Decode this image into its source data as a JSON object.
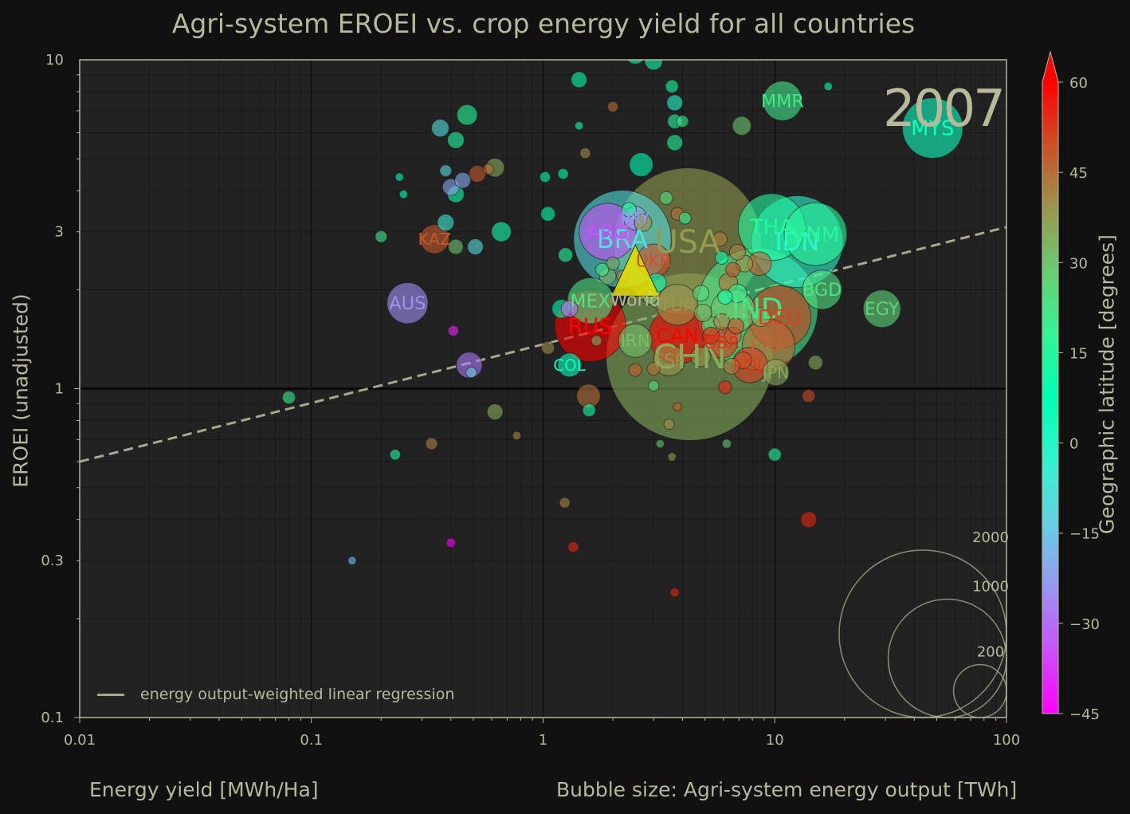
{
  "title": "Agri-system EROEI vs. crop energy yield for all countries",
  "year": "2007",
  "colors": {
    "background": "#111111",
    "axes_bg": "#222222",
    "text": "#b8b89a",
    "grid": "#111111",
    "regression": "#a8a88c"
  },
  "chart_data": {
    "type": "scatter",
    "xlabel": "Energy yield [MWh/Ha]",
    "ylabel": "EROEI (unadjusted)",
    "size_label": "Bubble size: Agri-system energy output [TWh]",
    "colorbar_label": "Geographic latitude [degrees]",
    "x_scale": "log",
    "y_scale": "log",
    "xlim": [
      0.01,
      100
    ],
    "ylim": [
      0.1,
      10
    ],
    "x_ticks": [
      "0.01",
      "0.1",
      "1",
      "10",
      "100"
    ],
    "y_ticks": [
      "0.1",
      "0.3",
      "1",
      "3",
      "10"
    ],
    "colorbar": {
      "min": -45,
      "max": 60,
      "ticks": [
        "60",
        "45",
        "30",
        "15",
        "0",
        "−15",
        "−30",
        "−45"
      ],
      "colormap": "rainbow"
    },
    "legend": {
      "entry": "energy output-weighted linear regression",
      "placement": "lower-left"
    },
    "regression": {
      "points": [
        [
          0.01,
          0.6
        ],
        [
          100,
          3.1
        ]
      ]
    },
    "size_legend": [
      2000,
      1000,
      200
    ],
    "points": [
      {
        "label": "CHN",
        "x": 4.3,
        "y": 1.25,
        "size": 2000,
        "lat": 35
      },
      {
        "label": "USA",
        "x": 4.2,
        "y": 2.8,
        "size": 1550,
        "lat": 38
      },
      {
        "label": "IND",
        "x": 8.4,
        "y": 1.75,
        "size": 1050,
        "lat": 22
      },
      {
        "label": "BRA",
        "x": 2.2,
        "y": 2.85,
        "size": 680,
        "lat": -10
      },
      {
        "label": "IDN",
        "x": 12.5,
        "y": 2.8,
        "size": 600,
        "lat": -2
      },
      {
        "label": "THA",
        "x": 9.7,
        "y": 3.1,
        "size": 320,
        "lat": 15
      },
      {
        "label": "VNM",
        "x": 15,
        "y": 2.95,
        "size": 280,
        "lat": 16
      },
      {
        "label": "RUS",
        "x": 1.6,
        "y": 1.55,
        "size": 360,
        "lat": 60
      },
      {
        "label": "DEU",
        "x": 10.5,
        "y": 1.65,
        "size": 280,
        "lat": 51
      },
      {
        "label": "FRA",
        "x": 9.4,
        "y": 1.35,
        "size": 200,
        "lat": 46
      },
      {
        "label": "CAN",
        "x": 3.8,
        "y": 1.45,
        "size": 230,
        "lat": 60
      },
      {
        "label": "ARG",
        "x": 1.9,
        "y": 3.0,
        "size": 230,
        "lat": -34
      },
      {
        "label": "MEX",
        "x": 1.6,
        "y": 1.85,
        "size": 150,
        "lat": 23
      },
      {
        "label": "TUR",
        "x": 3.8,
        "y": 1.8,
        "size": 120,
        "lat": 39
      },
      {
        "label": "PAK",
        "x": 6.6,
        "y": 1.72,
        "size": 140,
        "lat": 30
      },
      {
        "label": "UKR",
        "x": 3.0,
        "y": 2.45,
        "size": 80,
        "lat": 49
      },
      {
        "label": "AUS",
        "x": 0.26,
        "y": 1.82,
        "size": 120,
        "lat": -25
      },
      {
        "label": "KAZ",
        "x": 0.34,
        "y": 2.85,
        "size": 60,
        "lat": 48
      },
      {
        "label": "EGY",
        "x": 29,
        "y": 1.75,
        "size": 100,
        "lat": 27
      },
      {
        "label": "BGD",
        "x": 16,
        "y": 2.0,
        "size": 110,
        "lat": 24
      },
      {
        "label": "MYS",
        "x": 48,
        "y": 6.2,
        "size": 260,
        "lat": 4
      },
      {
        "label": "MMR",
        "x": 10.8,
        "y": 7.5,
        "size": 110,
        "lat": 21
      },
      {
        "label": "POL",
        "x": 7.8,
        "y": 1.18,
        "size": 90,
        "lat": 52
      },
      {
        "label": "GBR",
        "x": 5.9,
        "y": 1.38,
        "size": 70,
        "lat": 54
      },
      {
        "label": "ESP",
        "x": 3.5,
        "y": 1.22,
        "size": 70,
        "lat": 40
      },
      {
        "label": "IRN",
        "x": 2.5,
        "y": 1.4,
        "size": 80,
        "lat": 32
      },
      {
        "label": "JPN",
        "x": 10.1,
        "y": 1.12,
        "size": 50,
        "lat": 36
      },
      {
        "label": "COL",
        "x": 1.3,
        "y": 1.18,
        "size": 40,
        "lat": 4
      },
      {
        "label": "PRY",
        "x": 2.5,
        "y": 3.3,
        "size": 40,
        "lat": -23
      },
      {
        "label": "World",
        "x": 2.5,
        "y": 2.0,
        "size": 0,
        "lat": 20
      },
      {
        "label": "",
        "x": 0.47,
        "y": 6.8,
        "size": 30,
        "lat": 15
      },
      {
        "label": "",
        "x": 0.36,
        "y": 6.2,
        "size": 22,
        "lat": -10
      },
      {
        "label": "",
        "x": 0.42,
        "y": 5.7,
        "size": 20,
        "lat": 14
      },
      {
        "label": "",
        "x": 0.45,
        "y": 4.3,
        "size": 18,
        "lat": -20
      },
      {
        "label": "",
        "x": 0.52,
        "y": 4.5,
        "size": 20,
        "lat": 48
      },
      {
        "label": "",
        "x": 0.42,
        "y": 3.9,
        "size": 20,
        "lat": 12
      },
      {
        "label": "",
        "x": 0.38,
        "y": 4.6,
        "size": 10,
        "lat": -12
      },
      {
        "label": "",
        "x": 0.38,
        "y": 3.2,
        "size": 20,
        "lat": -5
      },
      {
        "label": "",
        "x": 0.42,
        "y": 2.7,
        "size": 16,
        "lat": 30
      },
      {
        "label": "",
        "x": 0.51,
        "y": 2.7,
        "size": 18,
        "lat": -10
      },
      {
        "label": "",
        "x": 0.2,
        "y": 2.9,
        "size": 10,
        "lat": 20
      },
      {
        "label": "",
        "x": 0.62,
        "y": 4.7,
        "size": 25,
        "lat": 35
      },
      {
        "label": "",
        "x": 0.66,
        "y": 3.0,
        "size": 28,
        "lat": 12
      },
      {
        "label": "",
        "x": 0.48,
        "y": 1.18,
        "size": 48,
        "lat": -28
      },
      {
        "label": "",
        "x": 0.49,
        "y": 1.12,
        "size": 8,
        "lat": -15
      },
      {
        "label": "",
        "x": 0.41,
        "y": 1.5,
        "size": 8,
        "lat": -40
      },
      {
        "label": "",
        "x": 0.08,
        "y": 0.94,
        "size": 12,
        "lat": 20
      },
      {
        "label": "",
        "x": 0.62,
        "y": 0.85,
        "size": 18,
        "lat": 35
      },
      {
        "label": "",
        "x": 0.33,
        "y": 0.68,
        "size": 10,
        "lat": 42
      },
      {
        "label": "",
        "x": 1.02,
        "y": 4.4,
        "size": 8,
        "lat": 10
      },
      {
        "label": "",
        "x": 1.05,
        "y": 3.4,
        "size": 15,
        "lat": 10
      },
      {
        "label": "",
        "x": 1.22,
        "y": 4.5,
        "size": 8,
        "lat": 10
      },
      {
        "label": "",
        "x": 1.25,
        "y": 2.55,
        "size": 15,
        "lat": 15
      },
      {
        "label": "",
        "x": 1.9,
        "y": 2.2,
        "size": 20,
        "lat": 35
      },
      {
        "label": "",
        "x": 1.2,
        "y": 1.75,
        "size": 25,
        "lat": 8
      },
      {
        "label": "",
        "x": 1.3,
        "y": 1.75,
        "size": 20,
        "lat": -30
      },
      {
        "label": "",
        "x": 1.05,
        "y": 1.33,
        "size": 12,
        "lat": 40
      },
      {
        "label": "",
        "x": 1.57,
        "y": 0.95,
        "size": 40,
        "lat": 45
      },
      {
        "label": "",
        "x": 1.58,
        "y": 0.86,
        "size": 12,
        "lat": 12
      },
      {
        "label": "",
        "x": 1.43,
        "y": 8.7,
        "size": 18,
        "lat": 10
      },
      {
        "label": "",
        "x": 1.52,
        "y": 5.2,
        "size": 8,
        "lat": 40
      },
      {
        "label": "",
        "x": 1.43,
        "y": 6.3,
        "size": 5,
        "lat": 12
      },
      {
        "label": "",
        "x": 2.65,
        "y": 4.8,
        "size": 40,
        "lat": 8
      },
      {
        "label": "",
        "x": 2.0,
        "y": 7.2,
        "size": 8,
        "lat": 45
      },
      {
        "label": "",
        "x": 2.5,
        "y": 10.4,
        "size": 28,
        "lat": 10
      },
      {
        "label": "",
        "x": 3.0,
        "y": 9.9,
        "size": 22,
        "lat": 12
      },
      {
        "label": "",
        "x": 3.6,
        "y": 8.3,
        "size": 12,
        "lat": 12
      },
      {
        "label": "",
        "x": 3.7,
        "y": 7.4,
        "size": 18,
        "lat": 0
      },
      {
        "label": "",
        "x": 3.7,
        "y": 6.5,
        "size": 15,
        "lat": 15
      },
      {
        "label": "",
        "x": 4.0,
        "y": 6.5,
        "size": 10,
        "lat": 20
      },
      {
        "label": "",
        "x": 3.7,
        "y": 5.6,
        "size": 18,
        "lat": 15
      },
      {
        "label": "",
        "x": 7.2,
        "y": 6.3,
        "size": 25,
        "lat": 30
      },
      {
        "label": "",
        "x": 3.4,
        "y": 3.8,
        "size": 12,
        "lat": 25
      },
      {
        "label": "",
        "x": 3.8,
        "y": 3.4,
        "size": 12,
        "lat": 45
      },
      {
        "label": "",
        "x": 4.1,
        "y": 3.3,
        "size": 10,
        "lat": 18
      },
      {
        "label": "",
        "x": 2.35,
        "y": 3.5,
        "size": 15,
        "lat": 15
      },
      {
        "label": "",
        "x": 2.7,
        "y": 3.2,
        "size": 22,
        "lat": 40
      },
      {
        "label": "",
        "x": 3.1,
        "y": 2.1,
        "size": 25,
        "lat": 5
      },
      {
        "label": "",
        "x": 8.6,
        "y": 2.4,
        "size": 40,
        "lat": 48
      },
      {
        "label": "",
        "x": 5.8,
        "y": 2.85,
        "size": 15,
        "lat": 43
      },
      {
        "label": "",
        "x": 6.9,
        "y": 2.6,
        "size": 18,
        "lat": 42
      },
      {
        "label": "",
        "x": 7.4,
        "y": 2.4,
        "size": 20,
        "lat": 40
      },
      {
        "label": "",
        "x": 6.6,
        "y": 2.3,
        "size": 15,
        "lat": 50
      },
      {
        "label": "",
        "x": 5.9,
        "y": 2.5,
        "size": 12,
        "lat": 10
      },
      {
        "label": "",
        "x": 6.3,
        "y": 2.1,
        "size": 25,
        "lat": 45
      },
      {
        "label": "",
        "x": 6.9,
        "y": 1.95,
        "size": 25,
        "lat": 20
      },
      {
        "label": "",
        "x": 6.1,
        "y": 1.9,
        "size": 15,
        "lat": 12
      },
      {
        "label": "",
        "x": 4.8,
        "y": 1.95,
        "size": 18,
        "lat": 25
      },
      {
        "label": "",
        "x": 4.9,
        "y": 1.7,
        "size": 22,
        "lat": 35
      },
      {
        "label": "",
        "x": 5.3,
        "y": 1.55,
        "size": 25,
        "lat": 32
      },
      {
        "label": "",
        "x": 5.9,
        "y": 1.6,
        "size": 18,
        "lat": 42
      },
      {
        "label": "",
        "x": 6.8,
        "y": 1.55,
        "size": 18,
        "lat": 50
      },
      {
        "label": "",
        "x": 8.7,
        "y": 1.65,
        "size": 25,
        "lat": 28
      },
      {
        "label": "",
        "x": 6.6,
        "y": 1.45,
        "size": 20,
        "lat": 48
      },
      {
        "label": "",
        "x": 5.3,
        "y": 1.45,
        "size": 20,
        "lat": 56
      },
      {
        "label": "",
        "x": 4.8,
        "y": 1.25,
        "size": 28,
        "lat": 40
      },
      {
        "label": "",
        "x": 6.5,
        "y": 1.17,
        "size": 18,
        "lat": 42
      },
      {
        "label": "",
        "x": 6.1,
        "y": 1.01,
        "size": 12,
        "lat": 56
      },
      {
        "label": "",
        "x": 7.3,
        "y": 1.22,
        "size": 20,
        "lat": 50
      },
      {
        "label": "",
        "x": 15,
        "y": 1.2,
        "size": 15,
        "lat": 35
      },
      {
        "label": "",
        "x": 14,
        "y": 0.95,
        "size": 12,
        "lat": 50
      },
      {
        "label": "",
        "x": 14,
        "y": 0.4,
        "size": 18,
        "lat": 55
      },
      {
        "label": "",
        "x": 3.0,
        "y": 1.15,
        "size": 12,
        "lat": 45
      },
      {
        "label": "",
        "x": 2.5,
        "y": 1.14,
        "size": 12,
        "lat": 48
      },
      {
        "label": "",
        "x": 3.0,
        "y": 1.02,
        "size": 8,
        "lat": 25
      },
      {
        "label": "",
        "x": 2.9,
        "y": 1.9,
        "size": 15,
        "lat": 32
      },
      {
        "label": "",
        "x": 2.0,
        "y": 2.4,
        "size": 12,
        "lat": 35
      },
      {
        "label": "",
        "x": 2.2,
        "y": 2.2,
        "size": 10,
        "lat": 42
      },
      {
        "label": "",
        "x": 1.8,
        "y": 2.3,
        "size": 12,
        "lat": 20
      },
      {
        "label": "",
        "x": 1.7,
        "y": 1.4,
        "size": 8,
        "lat": 35
      },
      {
        "label": "",
        "x": 3.5,
        "y": 0.78,
        "size": 8,
        "lat": 40
      },
      {
        "label": "",
        "x": 3.2,
        "y": 0.68,
        "size": 5,
        "lat": 30
      },
      {
        "label": "",
        "x": 3.8,
        "y": 0.88,
        "size": 5,
        "lat": 48
      },
      {
        "label": "",
        "x": 3.6,
        "y": 0.62,
        "size": 5,
        "lat": 38
      },
      {
        "label": "",
        "x": 0.77,
        "y": 0.72,
        "size": 5,
        "lat": 42
      },
      {
        "label": "",
        "x": 1.24,
        "y": 0.45,
        "size": 8,
        "lat": 42
      },
      {
        "label": "",
        "x": 1.35,
        "y": 0.33,
        "size": 8,
        "lat": 55
      },
      {
        "label": "",
        "x": 3.7,
        "y": 0.24,
        "size": 6,
        "lat": 55
      },
      {
        "label": "",
        "x": 0.4,
        "y": 0.34,
        "size": 6,
        "lat": -45
      },
      {
        "label": "",
        "x": 0.23,
        "y": 0.63,
        "size": 8,
        "lat": 15
      },
      {
        "label": "",
        "x": 0.15,
        "y": 0.3,
        "size": 5,
        "lat": -15
      },
      {
        "label": "",
        "x": 10,
        "y": 0.63,
        "size": 12,
        "lat": 15
      },
      {
        "label": "",
        "x": 6.2,
        "y": 0.68,
        "size": 6,
        "lat": 30
      },
      {
        "label": "",
        "x": 17,
        "y": 8.3,
        "size": 5,
        "lat": 5
      },
      {
        "label": "",
        "x": 0.4,
        "y": 4.1,
        "size": 20,
        "lat": -22
      },
      {
        "label": "",
        "x": 0.24,
        "y": 4.4,
        "size": 5,
        "lat": 5
      },
      {
        "label": "",
        "x": 0.25,
        "y": 3.9,
        "size": 5,
        "lat": 5
      },
      {
        "label": "",
        "x": 0.58,
        "y": 4.65,
        "size": 8,
        "lat": 45
      }
    ]
  }
}
